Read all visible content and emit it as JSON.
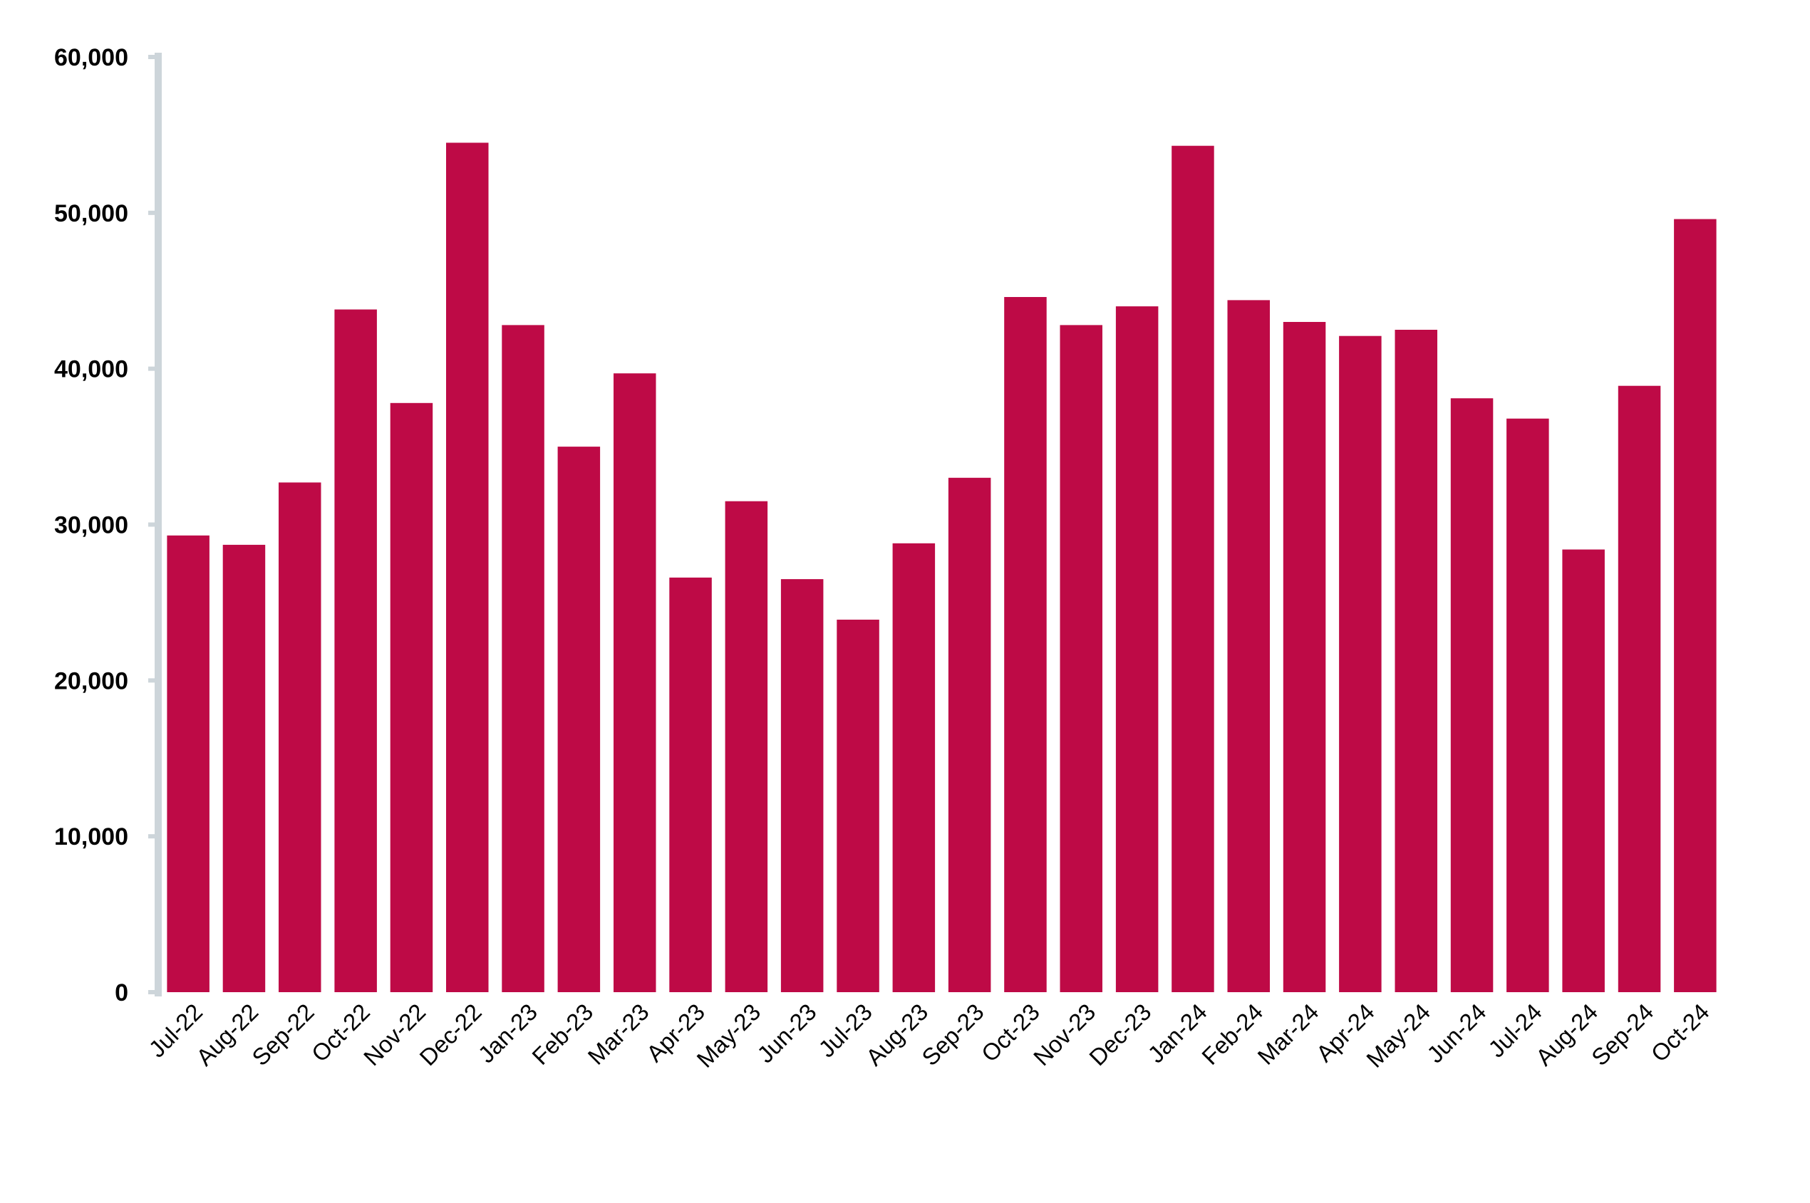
{
  "chart_data": {
    "type": "bar",
    "title": "",
    "xlabel": "",
    "ylabel": "",
    "ylim": [
      0,
      60000
    ],
    "yticks": [
      "0",
      "10,000",
      "20,000",
      "30,000",
      "40,000",
      "50,000",
      "60,000"
    ],
    "grid": false,
    "legend": "none",
    "bar_color": "#BE0A46",
    "axis_color": "#CDD5DA",
    "categories": [
      "Jul-22",
      "Aug-22",
      "Sep-22",
      "Oct-22",
      "Nov-22",
      "Dec-22",
      "Jan-23",
      "Feb-23",
      "Mar-23",
      "Apr-23",
      "May-23",
      "Jun-23",
      "Jul-23",
      "Aug-23",
      "Sep-23",
      "Oct-23",
      "Nov-23",
      "Dec-23",
      "Jan-24",
      "Feb-24",
      "Mar-24",
      "Apr-24",
      "May-24",
      "Jun-24",
      "Jul-24",
      "Aug-24",
      "Sep-24",
      "Oct-24"
    ],
    "values": [
      29300,
      28700,
      32700,
      43800,
      37800,
      54500,
      42800,
      35000,
      39700,
      26600,
      31500,
      26500,
      23900,
      28800,
      33000,
      44600,
      42800,
      44000,
      54300,
      44400,
      43000,
      42100,
      42500,
      38100,
      36800,
      28400,
      38900,
      49600
    ]
  }
}
